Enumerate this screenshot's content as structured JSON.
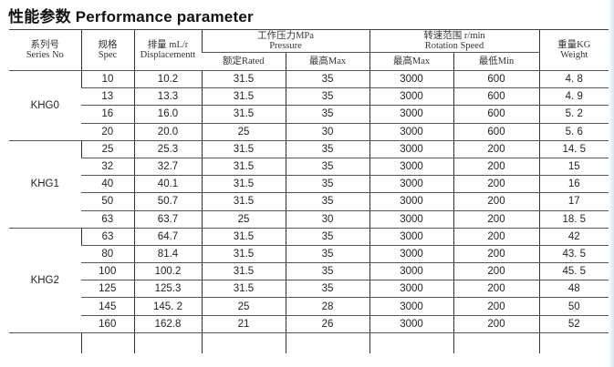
{
  "title": "性能参数 Performance parameter",
  "headers": {
    "series": [
      "系列号",
      "Series  No"
    ],
    "spec": [
      "规格",
      "Spec"
    ],
    "displacement": [
      "排量 mL/r",
      "Displacementt"
    ],
    "pressure": [
      "工作压力MPa",
      "Pressure"
    ],
    "pressure_rated": "额定Rated",
    "pressure_max": "最高Max",
    "speed": [
      "转速范围 r/min",
      "Rotation Speed"
    ],
    "speed_max": "最高Max",
    "speed_min": "最低Min",
    "weight": [
      "重量KG",
      "Weight"
    ]
  },
  "groups": [
    {
      "series": "KHG0",
      "rows": [
        [
          "10",
          "10.2",
          "31.5",
          "35",
          "3000",
          "600",
          "4. 8"
        ],
        [
          "13",
          "13.3",
          "31.5",
          "35",
          "3000",
          "600",
          "4. 9"
        ],
        [
          "16",
          "16.0",
          "31.5",
          "35",
          "3000",
          "600",
          "5. 2"
        ],
        [
          "20",
          "20.0",
          "25",
          "30",
          "3000",
          "600",
          "5. 6"
        ]
      ]
    },
    {
      "series": "KHG1",
      "rows": [
        [
          "25",
          "25.3",
          "31.5",
          "35",
          "3000",
          "200",
          "14. 5"
        ],
        [
          "32",
          "32.7",
          "31.5",
          "35",
          "3000",
          "200",
          "15"
        ],
        [
          "40",
          "40.1",
          "31.5",
          "35",
          "3000",
          "200",
          "16"
        ],
        [
          "50",
          "50.7",
          "31.5",
          "35",
          "3000",
          "200",
          "17"
        ],
        [
          "63",
          "63.7",
          "25",
          "30",
          "3000",
          "200",
          "18. 5"
        ]
      ]
    },
    {
      "series": "KHG2",
      "rows": [
        [
          "63",
          "64.7",
          "31.5",
          "35",
          "3000",
          "200",
          "42"
        ],
        [
          "80",
          "81.4",
          "31.5",
          "35",
          "3000",
          "200",
          "43. 5"
        ],
        [
          "100",
          "100.2",
          "31.5",
          "35",
          "3000",
          "200",
          "45. 5"
        ],
        [
          "125",
          "125.3",
          "31.5",
          "35",
          "3000",
          "200",
          "48"
        ],
        [
          "145",
          "145. 2",
          "25",
          "28",
          "3000",
          "200",
          "50"
        ],
        [
          "160",
          "162.8",
          "21",
          "26",
          "3000",
          "200",
          "52"
        ]
      ]
    }
  ]
}
